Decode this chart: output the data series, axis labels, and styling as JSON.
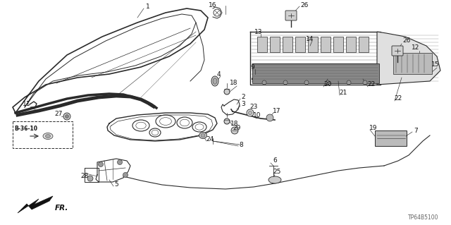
{
  "part_code": "TP64B5100",
  "bg_color": "#ffffff",
  "line_color": "#2a2a2a",
  "text_color": "#111111",
  "figsize": [
    6.4,
    3.19
  ],
  "dpi": 100,
  "b3610_text": "B-36-10",
  "fr_text": "FR."
}
